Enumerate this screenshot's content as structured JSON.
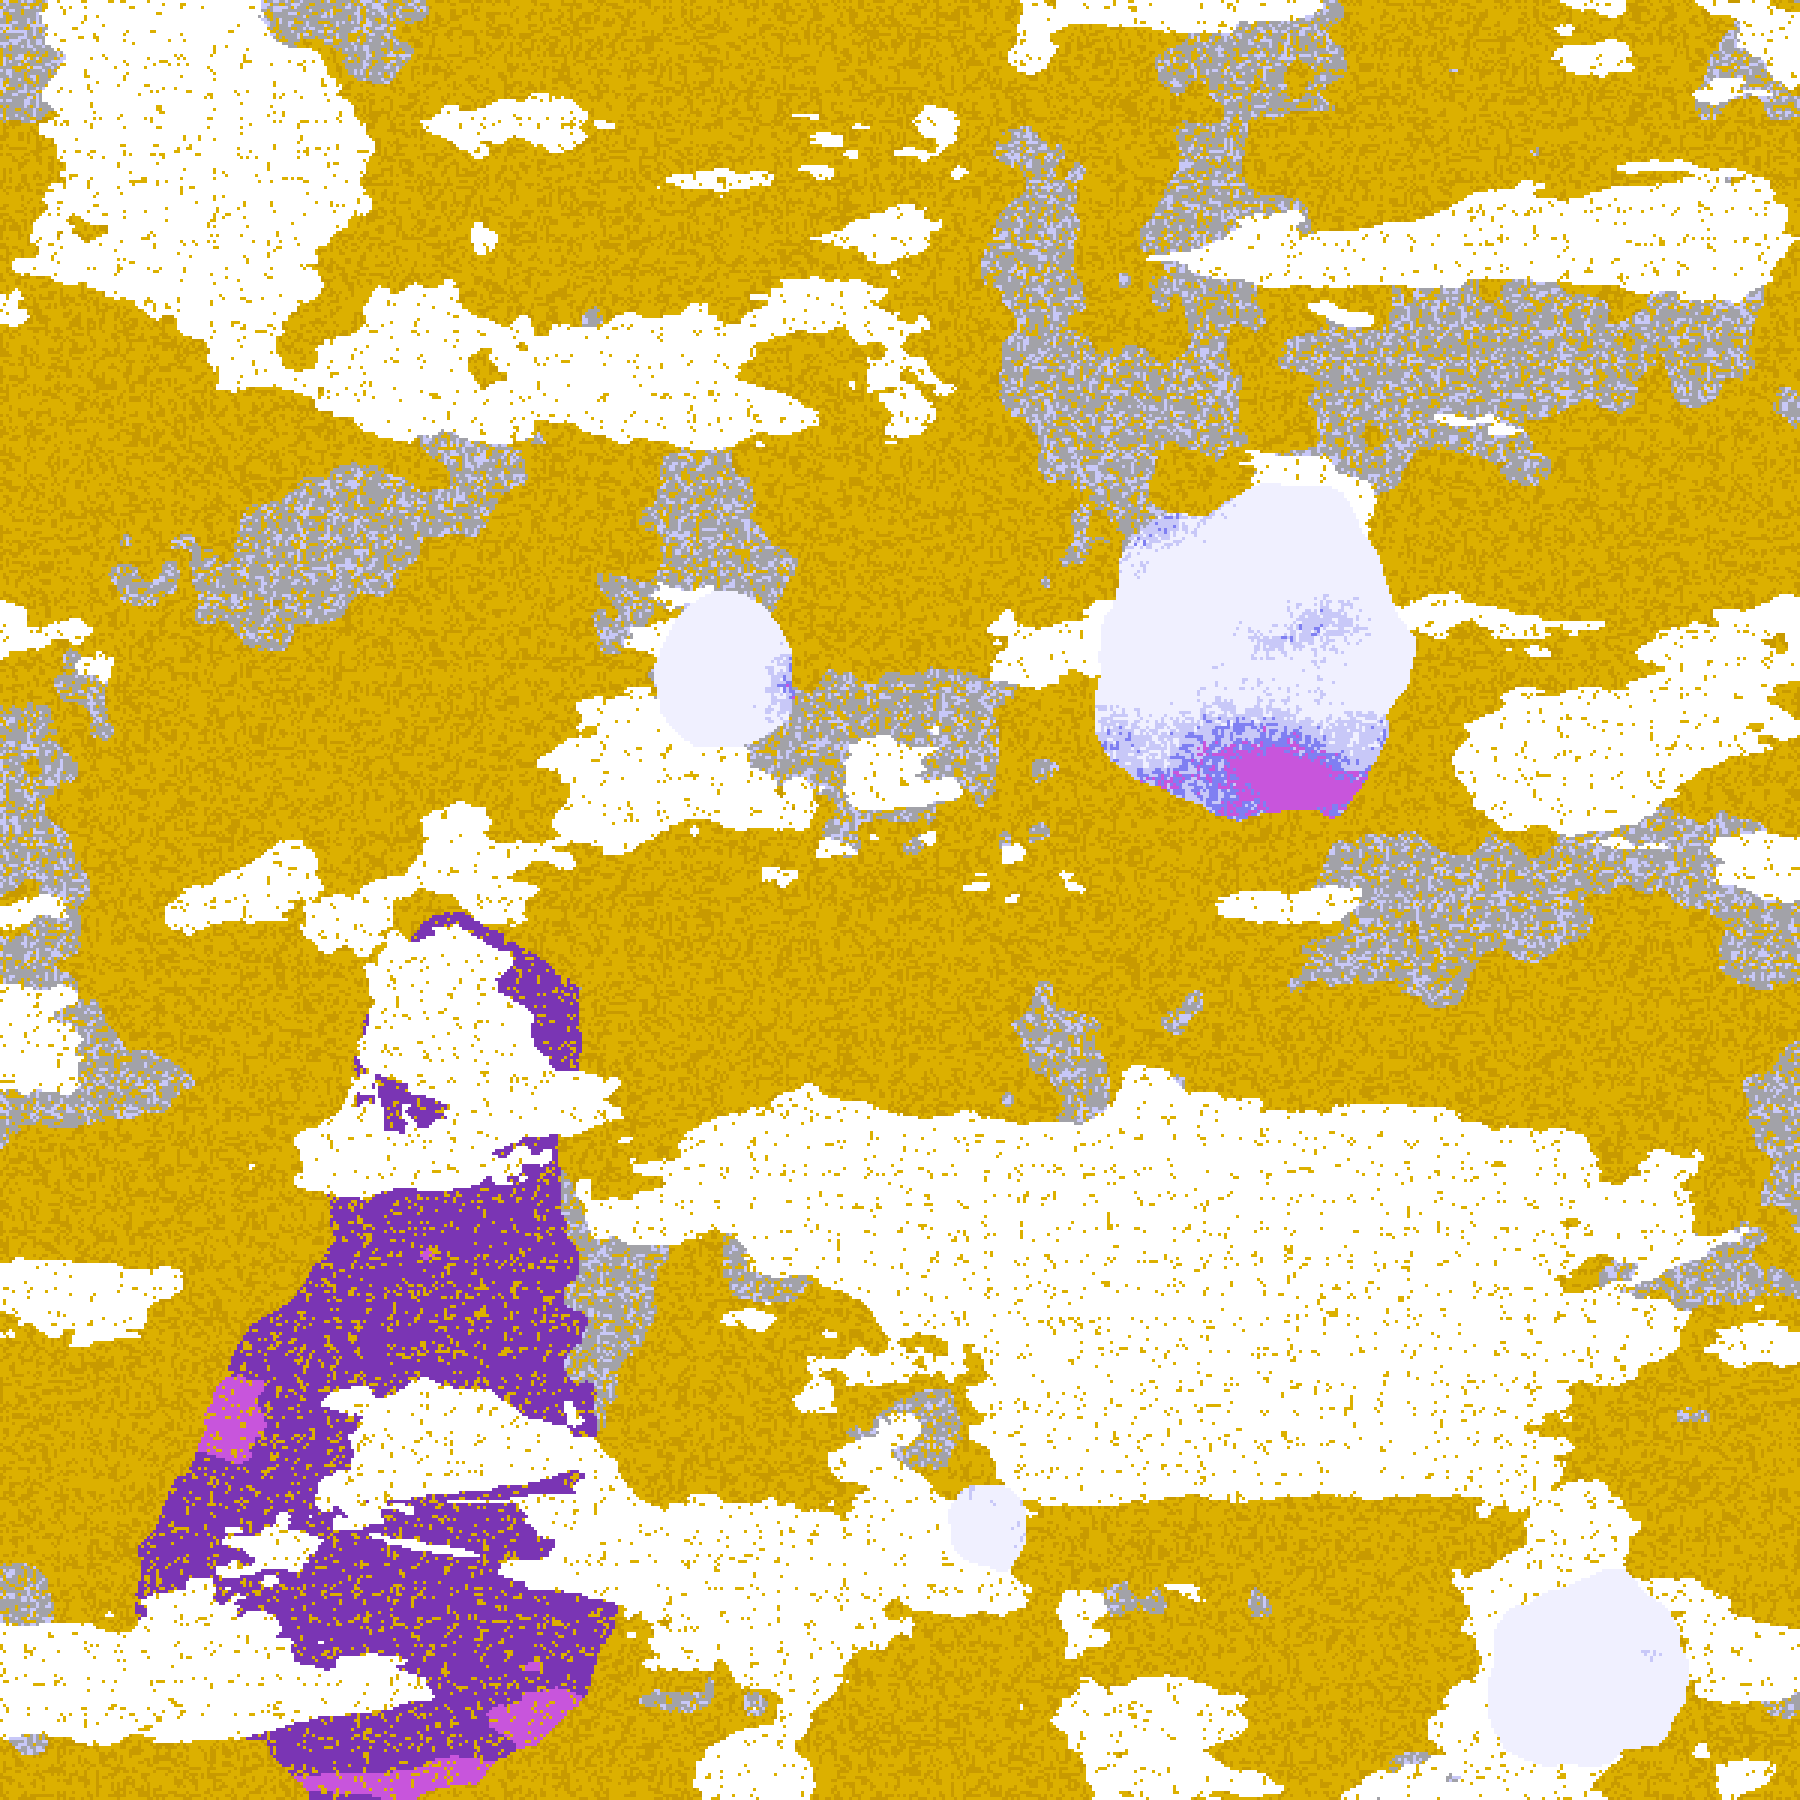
{
  "image": {
    "kind": "classified satellite imagery",
    "palette": {
      "clear": "#ffffff",
      "gray": "#a2a2a8",
      "gold": "#dcb000",
      "dark_gold": "#c89a00",
      "purple": "#7a35b4",
      "magenta": "#c855dc",
      "periwinkle": "#7f7ff2",
      "lavender": "#c8c8f8",
      "pale": "#f0f0ff"
    },
    "class_order": [
      "clear",
      "gray",
      "gold",
      "dark_gold",
      "purple",
      "periwinkle",
      "lavender",
      "pale",
      "magenta"
    ]
  }
}
